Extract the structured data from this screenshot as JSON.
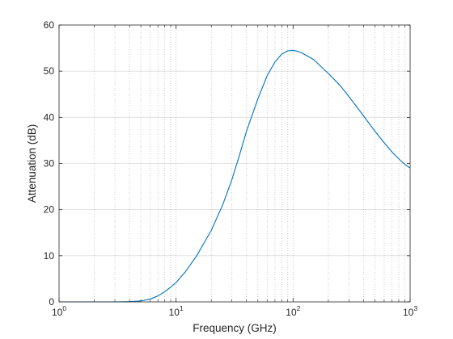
{
  "chart_data": {
    "type": "line",
    "title": "",
    "xlabel": "Frequency (GHz)",
    "ylabel": "Attenuation (dB)",
    "xscale": "log",
    "xlim": [
      1,
      1000
    ],
    "ylim": [
      0,
      60
    ],
    "grid": "major horizontal solid, minor vertical dotted",
    "x_ticks": [
      1,
      10,
      100,
      1000
    ],
    "x_tick_labels": [
      {
        "base": "10",
        "exp": "0"
      },
      {
        "base": "10",
        "exp": "1"
      },
      {
        "base": "10",
        "exp": "2"
      },
      {
        "base": "10",
        "exp": "3"
      }
    ],
    "y_ticks": [
      0,
      10,
      20,
      30,
      40,
      50,
      60
    ],
    "y_tick_labels": [
      "0",
      "10",
      "20",
      "30",
      "40",
      "50",
      "60"
    ],
    "line_color": "#0072bd",
    "series": [
      {
        "x": [
          1,
          2,
          3,
          4,
          5,
          6,
          7,
          8,
          9,
          10,
          12,
          15,
          20,
          25,
          30,
          35,
          40,
          50,
          60,
          70,
          80,
          90,
          100,
          110,
          120,
          150,
          200,
          250,
          300,
          400,
          500,
          600,
          700,
          800,
          900,
          1000
        ],
        "y": [
          0,
          0,
          0,
          0.05,
          0.2,
          0.6,
          1.3,
          2.2,
          3.2,
          4.2,
          6.5,
          10.0,
          15.5,
          21.0,
          26.5,
          32.0,
          37.0,
          44.0,
          49.0,
          52.0,
          53.7,
          54.4,
          54.5,
          54.3,
          53.9,
          52.5,
          49.5,
          47.0,
          44.5,
          40.3,
          37.0,
          34.5,
          32.5,
          31.0,
          29.8,
          29.0
        ]
      }
    ]
  }
}
